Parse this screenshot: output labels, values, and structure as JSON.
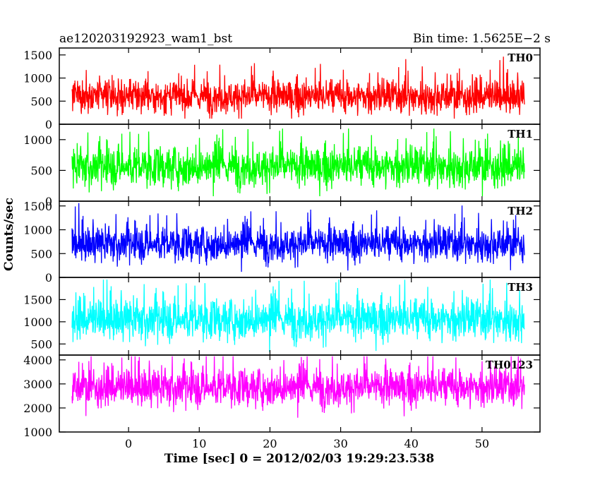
{
  "header": {
    "left_title": "ae120203192923_wam1_bst",
    "right_title": "Bin time: 1.5625E−2 s"
  },
  "axes": {
    "ylabel": "Counts/sec",
    "xlabel": "Time [sec] 0 = 2012/02/03 19:29:23.538"
  },
  "chart_data": {
    "type": "line",
    "title": "ae120203192923_wam1_bst",
    "subtitle": "Bin time: 1.5625E−2 s",
    "xlabel": "Time [sec] 0 = 2012/02/03 19:29:23.538",
    "ylabel": "Counts/sec",
    "xlim": [
      -9.8,
      58.2
    ],
    "x_range_data": [
      -8.0,
      56.0
    ],
    "bin_time_s": 0.015625,
    "x_ticks": [
      0,
      10,
      20,
      30,
      40,
      50
    ],
    "grid": false,
    "panels": [
      {
        "name": "TH0",
        "color": "#ff0000",
        "ylim": [
          0,
          1650
        ],
        "y_ticks": [
          0,
          500,
          1000,
          1500
        ],
        "mean": 600,
        "spread": 260,
        "min_level": 120,
        "max_level": 1600
      },
      {
        "name": "TH1",
        "color": "#00ff00",
        "ylim": [
          0,
          1250
        ],
        "y_ticks": [
          0,
          500,
          1000
        ],
        "mean": 560,
        "spread": 230,
        "min_level": 80,
        "max_level": 1180
      },
      {
        "name": "TH2",
        "color": "#0000ff",
        "ylim": [
          0,
          1600
        ],
        "y_ticks": [
          0,
          500,
          1000,
          1500
        ],
        "mean": 700,
        "spread": 260,
        "min_level": 60,
        "max_level": 1560
      },
      {
        "name": "TH3",
        "color": "#00ffff",
        "ylim": [
          250,
          2000
        ],
        "y_ticks": [
          500,
          1000,
          1500
        ],
        "mean": 1050,
        "spread": 330,
        "min_level": 320,
        "max_level": 1950
      },
      {
        "name": "TH0123",
        "color": "#ff00ff",
        "ylim": [
          1000,
          4200
        ],
        "y_ticks": [
          1000,
          2000,
          3000,
          4000
        ],
        "mean": 2850,
        "spread": 560,
        "min_level": 1050,
        "max_level": 4150
      }
    ]
  }
}
